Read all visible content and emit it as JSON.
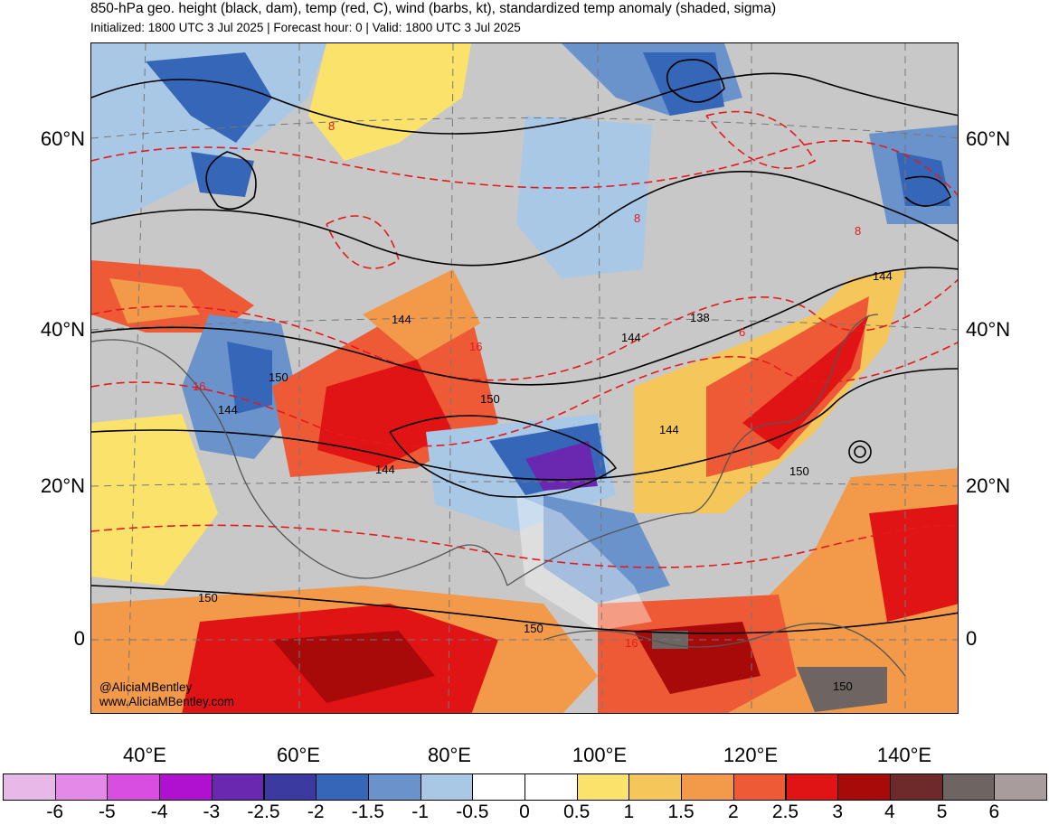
{
  "header": {
    "title": "850-hPa geo. height (black, dam), temp (red, C), wind (barbs, kt), standardized temp anomaly (shaded, sigma)",
    "subtitle": "Initialized: 1800 UTC 3 Jul 2025 | Forecast hour: 0 | Valid: 1800 UTC 3 Jul 2025"
  },
  "map": {
    "lat_labels": [
      "60°N",
      "40°N",
      "20°N",
      "0"
    ],
    "lon_labels": [
      "40°E",
      "60°E",
      "80°E",
      "100°E",
      "120°E",
      "140°E"
    ],
    "height_contour_labels": [
      "144",
      "150",
      "144",
      "150",
      "144",
      "138",
      "144",
      "144",
      "144",
      "150",
      "150",
      "150",
      "150"
    ],
    "temp_contour_labels": [
      "8",
      "8",
      "8",
      "16",
      "16",
      "6",
      "16"
    ],
    "colors": {
      "ocean_land": "#c8c8c8",
      "height_contours": "#000000",
      "temp_contours": "#e41a1c",
      "coastlines": "#555555"
    }
  },
  "credits": {
    "twitter": "@AliciaMBentley",
    "website": "www.AliciaMBentley.com"
  },
  "colorbar": {
    "colors": [
      "#e8b8e8",
      "#e489e8",
      "#d84ee0",
      "#b010d0",
      "#6a28b0",
      "#3a3aa0",
      "#3566b8",
      "#6a93cc",
      "#a9c8e6",
      "#ffffff",
      "#ffffff",
      "#fbe36b",
      "#f5c65a",
      "#f29a4a",
      "#ee5a35",
      "#e01414",
      "#a80a0a",
      "#6e2a2a",
      "#6e6462",
      "#a89c9c"
    ],
    "ticks": [
      "-6",
      "-5",
      "-4",
      "-3",
      "-2.5",
      "-2",
      "-1.5",
      "-1",
      "-0.5",
      "0",
      "0.5",
      "1",
      "1.5",
      "2",
      "2.5",
      "3",
      "4",
      "5",
      "6"
    ]
  }
}
